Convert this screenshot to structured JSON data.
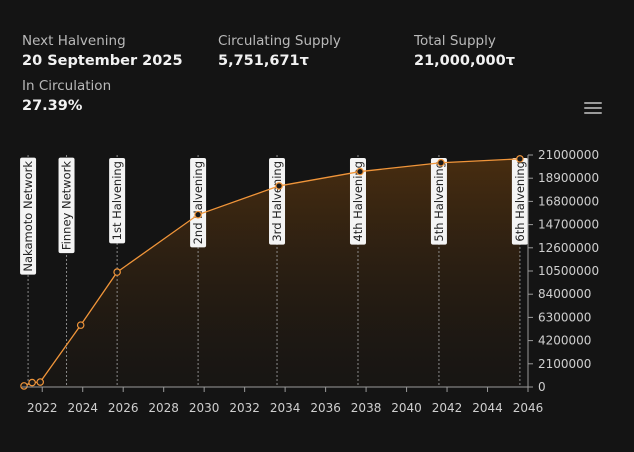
{
  "stats": {
    "next_halvening": {
      "label": "Next Halvening",
      "value": "20 September 2025"
    },
    "circulating_supply": {
      "label": "Circulating Supply",
      "value": "5,751,671τ"
    },
    "total_supply": {
      "label": "Total Supply",
      "value": "21,000,000τ"
    },
    "in_circulation": {
      "label": "In Circulation",
      "value": "27.39%"
    }
  },
  "menu_icon": "hamburger-menu-icon",
  "colors": {
    "line": "#f0953a",
    "fill": "#3a2510",
    "background": "#141414",
    "event_line": "#8a8a8a"
  },
  "chart_data": {
    "type": "area",
    "xlim": [
      2021.0,
      2046.0
    ],
    "ylim": [
      0,
      21000000
    ],
    "x_ticks": [
      "2022",
      "2024",
      "2026",
      "2028",
      "2030",
      "2032",
      "2034",
      "2036",
      "2038",
      "2040",
      "2042",
      "2044",
      "2046"
    ],
    "x_tick_values": [
      2022,
      2024,
      2026,
      2028,
      2030,
      2032,
      2034,
      2036,
      2038,
      2040,
      2042,
      2044,
      2046
    ],
    "y_ticks": [
      "21000000",
      "18900000",
      "16800000",
      "14700000",
      "12600000",
      "10500000",
      "8400000",
      "6300000",
      "4200000",
      "2100000",
      "0"
    ],
    "y_tick_values": [
      21000000,
      18900000,
      16800000,
      14700000,
      12600000,
      10500000,
      8400000,
      6300000,
      4200000,
      2100000,
      0
    ],
    "series": [
      {
        "x": [
          2021.1,
          2021.5,
          2021.9,
          2023.9,
          2025.7,
          2029.7,
          2033.7,
          2037.7,
          2041.7,
          2045.6
        ],
        "y": [
          100000,
          400000,
          450000,
          5600000,
          10400000,
          15600000,
          18200000,
          19500000,
          20300000,
          20650000
        ]
      }
    ],
    "events": [
      {
        "label": "Nakamoto Network",
        "x": 2021.3
      },
      {
        "label": "Finney Network",
        "x": 2023.2
      },
      {
        "label": "1st Halvening",
        "x": 2025.7
      },
      {
        "label": "2nd Halvening",
        "x": 2029.7
      },
      {
        "label": "3rd Halvening",
        "x": 2033.6
      },
      {
        "label": "4th Halvening",
        "x": 2037.6
      },
      {
        "label": "5th Halvening",
        "x": 2041.6
      },
      {
        "label": "6th Halvening",
        "x": 2045.6
      }
    ]
  }
}
